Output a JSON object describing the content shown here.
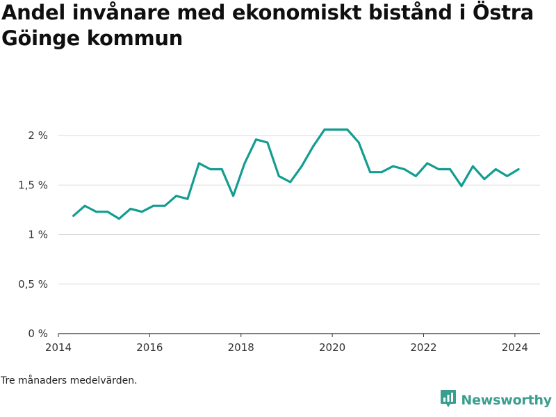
{
  "header": {
    "title": "Andel invånare med ekonomiskt bistånd i Östra Göinge kommun"
  },
  "footnote": "Tre månaders medelvärden.",
  "brand": {
    "name": "Newsworthy",
    "icon": "newsworthy-logo-icon",
    "color": "#3a9e8f"
  },
  "chart_data": {
    "type": "line",
    "title": "Andel invånare med ekonomiskt bistånd i Östra Göinge kommun",
    "xlabel": "",
    "ylabel": "",
    "ylim": [
      0,
      2
    ],
    "xlim": [
      2014.0,
      2024.55
    ],
    "grid": true,
    "line_color": "#129d90",
    "y_ticks": [
      {
        "value": 0,
        "label": "0 %"
      },
      {
        "value": 0.5,
        "label": "0,5 %"
      },
      {
        "value": 1,
        "label": "1 %"
      },
      {
        "value": 1.5,
        "label": "1,5 %"
      },
      {
        "value": 2,
        "label": "2 %"
      }
    ],
    "x_ticks": [
      {
        "value": 2014,
        "label": "2014"
      },
      {
        "value": 2016,
        "label": "2016"
      },
      {
        "value": 2018,
        "label": "2018"
      },
      {
        "value": 2020,
        "label": "2020"
      },
      {
        "value": 2022,
        "label": "2022"
      },
      {
        "value": 2024,
        "label": "2024"
      }
    ],
    "series": [
      {
        "x": [
          2014.33,
          2014.58,
          2014.83,
          2015.08,
          2015.33,
          2015.58,
          2015.83,
          2016.08,
          2016.33,
          2016.58,
          2016.83,
          2017.08,
          2017.33,
          2017.58,
          2017.83,
          2018.08,
          2018.33,
          2018.58,
          2018.83,
          2019.08,
          2019.33,
          2019.58,
          2019.83,
          2020.08,
          2020.33,
          2020.58,
          2020.83,
          2021.08,
          2021.33,
          2021.58,
          2021.83,
          2022.08,
          2022.33,
          2022.58,
          2022.83,
          2023.08,
          2023.33,
          2023.58,
          2023.83,
          2024.08
        ],
        "values": [
          1.19,
          1.29,
          1.23,
          1.23,
          1.16,
          1.26,
          1.23,
          1.29,
          1.29,
          1.39,
          1.36,
          1.72,
          1.66,
          1.66,
          1.39,
          1.72,
          1.96,
          1.93,
          1.59,
          1.53,
          1.69,
          1.89,
          2.06,
          2.06,
          2.06,
          1.93,
          1.63,
          1.63,
          1.69,
          1.66,
          1.59,
          1.72,
          1.66,
          1.66,
          1.49,
          1.69,
          1.56,
          1.66,
          1.59,
          1.66
        ]
      }
    ]
  }
}
